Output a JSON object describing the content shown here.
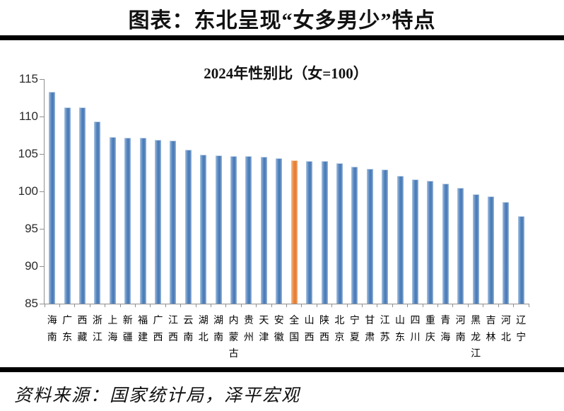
{
  "header": {
    "title": "图表：东北呈现“女多男少”特点"
  },
  "chart_data": {
    "type": "bar",
    "title": "2024年性别比（女=100）",
    "categories": [
      "海南",
      "广东",
      "西藏",
      "浙江",
      "上海",
      "新疆",
      "福建",
      "广西",
      "江西",
      "云南",
      "湖北",
      "湖南",
      "内蒙古",
      "贵州",
      "天津",
      "安徽",
      "全国",
      "山西",
      "陕西",
      "北京",
      "宁夏",
      "甘肃",
      "江苏",
      "山东",
      "四川",
      "重庆",
      "青海",
      "河南",
      "黑龙江",
      "吉林",
      "河北",
      "辽宁"
    ],
    "values": [
      113.2,
      111.1,
      111.1,
      109.2,
      107.2,
      107.1,
      107.1,
      106.8,
      106.7,
      105.5,
      104.8,
      104.7,
      104.6,
      104.6,
      104.5,
      104.3,
      104.1,
      104.0,
      104.0,
      103.7,
      103.2,
      102.9,
      102.8,
      102.0,
      101.5,
      101.3,
      100.9,
      100.4,
      99.5,
      99.2,
      98.5,
      96.6
    ],
    "highlight_category": "全国",
    "highlight_index": 16,
    "bar_color": "#4f81bd",
    "highlight_color": "#e8833a",
    "axis_color": "#909090",
    "ylim": [
      85,
      115
    ],
    "yticks": [
      115,
      110,
      105,
      100,
      95,
      90,
      85
    ],
    "grid": false,
    "legend": false,
    "xlabel": "",
    "ylabel": ""
  },
  "footer": {
    "source": "资料来源：国家统计局，泽平宏观"
  }
}
